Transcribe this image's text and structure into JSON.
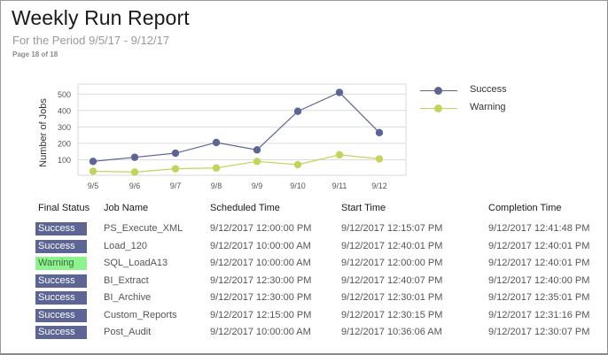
{
  "header": {
    "title": "Weekly Run Report",
    "subtitle": "For the Period 9/5/17 - 9/12/17",
    "page_info": "Page 18 of 18"
  },
  "colors": {
    "success": "#5c6594",
    "warning": "#c4d35a",
    "warning_badge": "#8ef28e",
    "success_badge_text": "#ffffff",
    "warning_badge_text": "#3a6a3a",
    "gridline": "#dcdcdc"
  },
  "chart_data": {
    "type": "line",
    "title": "",
    "xlabel": "",
    "ylabel": "Number of Jobs",
    "categories": [
      "9/5",
      "9/6",
      "9/7",
      "9/8",
      "9/9",
      "9/10",
      "9/11",
      "9/12"
    ],
    "series": [
      {
        "name": "Success",
        "values": [
          90,
          115,
          140,
          205,
          160,
          395,
          510,
          265
        ],
        "color": "#5c6594"
      },
      {
        "name": "Warning",
        "values": [
          30,
          25,
          45,
          50,
          90,
          70,
          130,
          105
        ],
        "color": "#c4d35a"
      }
    ],
    "yticks": [
      100,
      200,
      300,
      400,
      500
    ],
    "ylim": [
      0,
      560
    ],
    "grid": true,
    "legend_position": "right"
  },
  "table": {
    "headers": [
      "Final Status",
      "Job Name",
      "Scheduled Time",
      "Start Time",
      "Completion Time"
    ],
    "rows": [
      {
        "status": "Success",
        "job": "PS_Execute_XML",
        "scheduled": "9/12/2017 12:00:00 PM",
        "start": "9/12/2017 12:15:07 PM",
        "completion": "9/12/2017 12:41:48 PM"
      },
      {
        "status": "Success",
        "job": "Load_120",
        "scheduled": "9/12/2017 10:00:00 AM",
        "start": "9/12/2017 12:40:01 PM",
        "completion": "9/12/2017 12:40:01 PM"
      },
      {
        "status": "Warning",
        "job": "SQL_LoadA13",
        "scheduled": "9/12/2017 10:00:00 AM",
        "start": "9/12/2017 12:00:00 PM",
        "completion": "9/12/2017 12:40:01 PM"
      },
      {
        "status": "Success",
        "job": "BI_Extract",
        "scheduled": "9/12/2017 12:30:00 PM",
        "start": "9/12/2017 12:40:07 PM",
        "completion": "9/12/2017 12:40:00 PM"
      },
      {
        "status": "Success",
        "job": "BI_Archive",
        "scheduled": "9/12/2017 12:30:00 PM",
        "start": "9/12/2017 12:30:01 PM",
        "completion": "9/12/2017 12:35:01 PM"
      },
      {
        "status": "Success",
        "job": "Custom_Reports",
        "scheduled": "9/12/2017 12:15:00 PM",
        "start": "9/12/2017 12:30:15 PM",
        "completion": "9/12/2017 12:31:16 PM"
      },
      {
        "status": "Success",
        "job": "Post_Audit",
        "scheduled": "9/12/2017 10:00:00 AM",
        "start": "9/12/2017 10:36:06 AM",
        "completion": "9/12/2017 12:30:07 PM"
      }
    ]
  }
}
